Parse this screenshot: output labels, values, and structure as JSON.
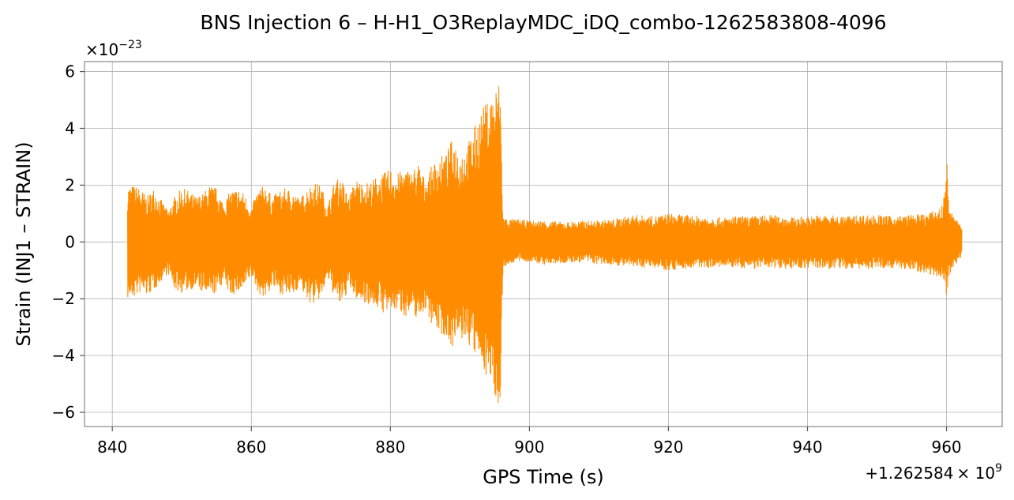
{
  "chart_data": {
    "type": "line",
    "title": "BNS Injection 6 – H-H1_O3ReplayMDC_iDQ_combo-1262583808-4096",
    "xlabel": "GPS Time (s)",
    "ylabel": "Strain (INJ1 – STRAIN)",
    "x_offset_text": "+1.262584",
    "x_offset_exp_base": "× 10",
    "x_offset_exp": "9",
    "y_scale_base": "×10",
    "y_scale_exp": "−23",
    "xlim": [
      836,
      968
    ],
    "ylim": [
      -6.5,
      6.35
    ],
    "xticks": [
      840,
      860,
      880,
      900,
      920,
      940,
      960
    ],
    "xtick_labels": [
      "840",
      "860",
      "880",
      "900",
      "920",
      "940",
      "960"
    ],
    "yticks": [
      -6,
      -4,
      -2,
      0,
      2,
      4,
      6
    ],
    "ytick_labels": [
      "−6",
      "−4",
      "−2",
      "0",
      "2",
      "4",
      "6"
    ],
    "grid": true,
    "series": [
      {
        "color": "#ff8c00",
        "x": [
          842.2,
          843,
          844,
          845,
          846,
          847,
          848,
          849,
          850,
          851,
          852,
          853,
          854,
          855,
          856,
          857,
          858,
          859,
          860,
          861,
          862,
          863,
          864,
          865,
          866,
          867,
          868,
          869,
          870,
          871,
          872,
          873,
          874,
          875,
          876,
          877,
          878,
          879,
          880,
          881,
          882,
          883,
          884,
          885,
          886,
          887,
          888,
          889,
          890,
          891,
          892,
          893,
          894,
          895,
          895.8,
          896.2,
          897,
          898,
          900,
          902,
          905,
          908,
          910,
          912,
          915,
          918,
          920,
          922,
          925,
          928,
          930,
          932,
          935,
          938,
          940,
          942,
          945,
          948,
          950,
          952,
          955,
          957,
          958.5,
          959.5,
          960,
          960.3,
          961,
          962.2
        ],
        "envelope_upper": [
          2.0,
          2.0,
          1.9,
          1.6,
          1.9,
          1.5,
          1.1,
          1.6,
          1.9,
          1.8,
          1.6,
          1.7,
          2.0,
          1.9,
          1.4,
          1.8,
          1.9,
          1.7,
          1.2,
          1.9,
          2.0,
          1.6,
          1.8,
          1.9,
          1.8,
          1.5,
          1.9,
          2.1,
          2.0,
          1.3,
          2.2,
          2.2,
          1.6,
          2.2,
          2.1,
          2.1,
          2.3,
          2.4,
          2.6,
          2.4,
          2.6,
          2.5,
          2.8,
          2.2,
          2.7,
          3.0,
          3.1,
          3.7,
          3.2,
          3.4,
          4.0,
          4.6,
          5.0,
          5.4,
          5.75,
          0.9,
          0.8,
          0.8,
          0.75,
          0.75,
          0.7,
          0.75,
          0.75,
          0.8,
          0.95,
          0.9,
          1.0,
          0.95,
          0.9,
          0.85,
          0.9,
          0.9,
          0.95,
          0.85,
          0.9,
          0.95,
          0.9,
          0.95,
          0.95,
          0.9,
          0.95,
          1.0,
          1.1,
          1.3,
          3.2,
          1.3,
          0.9,
          0.6
        ],
        "envelope_lower": [
          -2.0,
          -2.0,
          -1.8,
          -1.9,
          -1.7,
          -1.4,
          -1.1,
          -1.7,
          -1.8,
          -1.7,
          -1.6,
          -1.8,
          -1.9,
          -1.8,
          -1.4,
          -1.9,
          -1.8,
          -1.7,
          -1.2,
          -1.8,
          -2.0,
          -1.6,
          -1.8,
          -1.9,
          -1.9,
          -1.5,
          -2.1,
          -2.2,
          -2.0,
          -1.3,
          -2.0,
          -2.3,
          -1.6,
          -2.0,
          -2.1,
          -2.2,
          -2.3,
          -2.5,
          -2.5,
          -2.4,
          -2.6,
          -2.6,
          -2.7,
          -2.4,
          -2.9,
          -3.2,
          -3.4,
          -3.7,
          -3.5,
          -3.5,
          -4.0,
          -4.3,
          -4.8,
          -5.4,
          -5.9,
          -0.9,
          -0.8,
          -0.7,
          -0.7,
          -0.8,
          -0.75,
          -0.7,
          -0.8,
          -0.8,
          -0.9,
          -0.9,
          -1.0,
          -0.95,
          -0.9,
          -0.9,
          -0.9,
          -0.95,
          -0.9,
          -0.95,
          -0.9,
          -0.95,
          -0.95,
          -0.95,
          -0.95,
          -0.9,
          -1.0,
          -1.1,
          -1.2,
          -1.3,
          -2.1,
          -1.2,
          -0.9,
          -0.5
        ]
      }
    ]
  }
}
